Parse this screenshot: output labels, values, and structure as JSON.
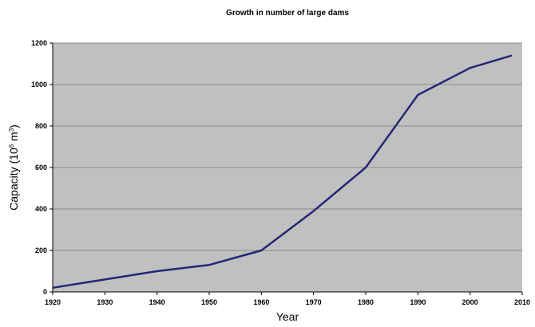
{
  "chart_data": {
    "type": "line",
    "title": "Growth in number of large dams",
    "xlabel": "Year",
    "ylabel": {
      "prefix": "Capacity (10",
      "sup1": "6",
      "mid": " m",
      "sup2": "3",
      "suffix": ")"
    },
    "xlim": [
      1920,
      2010
    ],
    "ylim": [
      0,
      1200
    ],
    "xticks": [
      1920,
      1930,
      1940,
      1950,
      1960,
      1970,
      1980,
      1990,
      2000,
      2010
    ],
    "yticks": [
      0,
      200,
      400,
      600,
      800,
      1000,
      1200
    ],
    "grid": true,
    "legend": false,
    "series": [
      {
        "x": [
          1920,
          1930,
          1940,
          1950,
          1960,
          1970,
          1980,
          1990,
          2000,
          2008
        ],
        "y": [
          20,
          60,
          100,
          130,
          200,
          390,
          600,
          950,
          1080,
          1140
        ]
      }
    ]
  },
  "colors": {
    "plot_background": "#c0c0c0",
    "grid": "#8a8a8a",
    "line": "#262673"
  }
}
